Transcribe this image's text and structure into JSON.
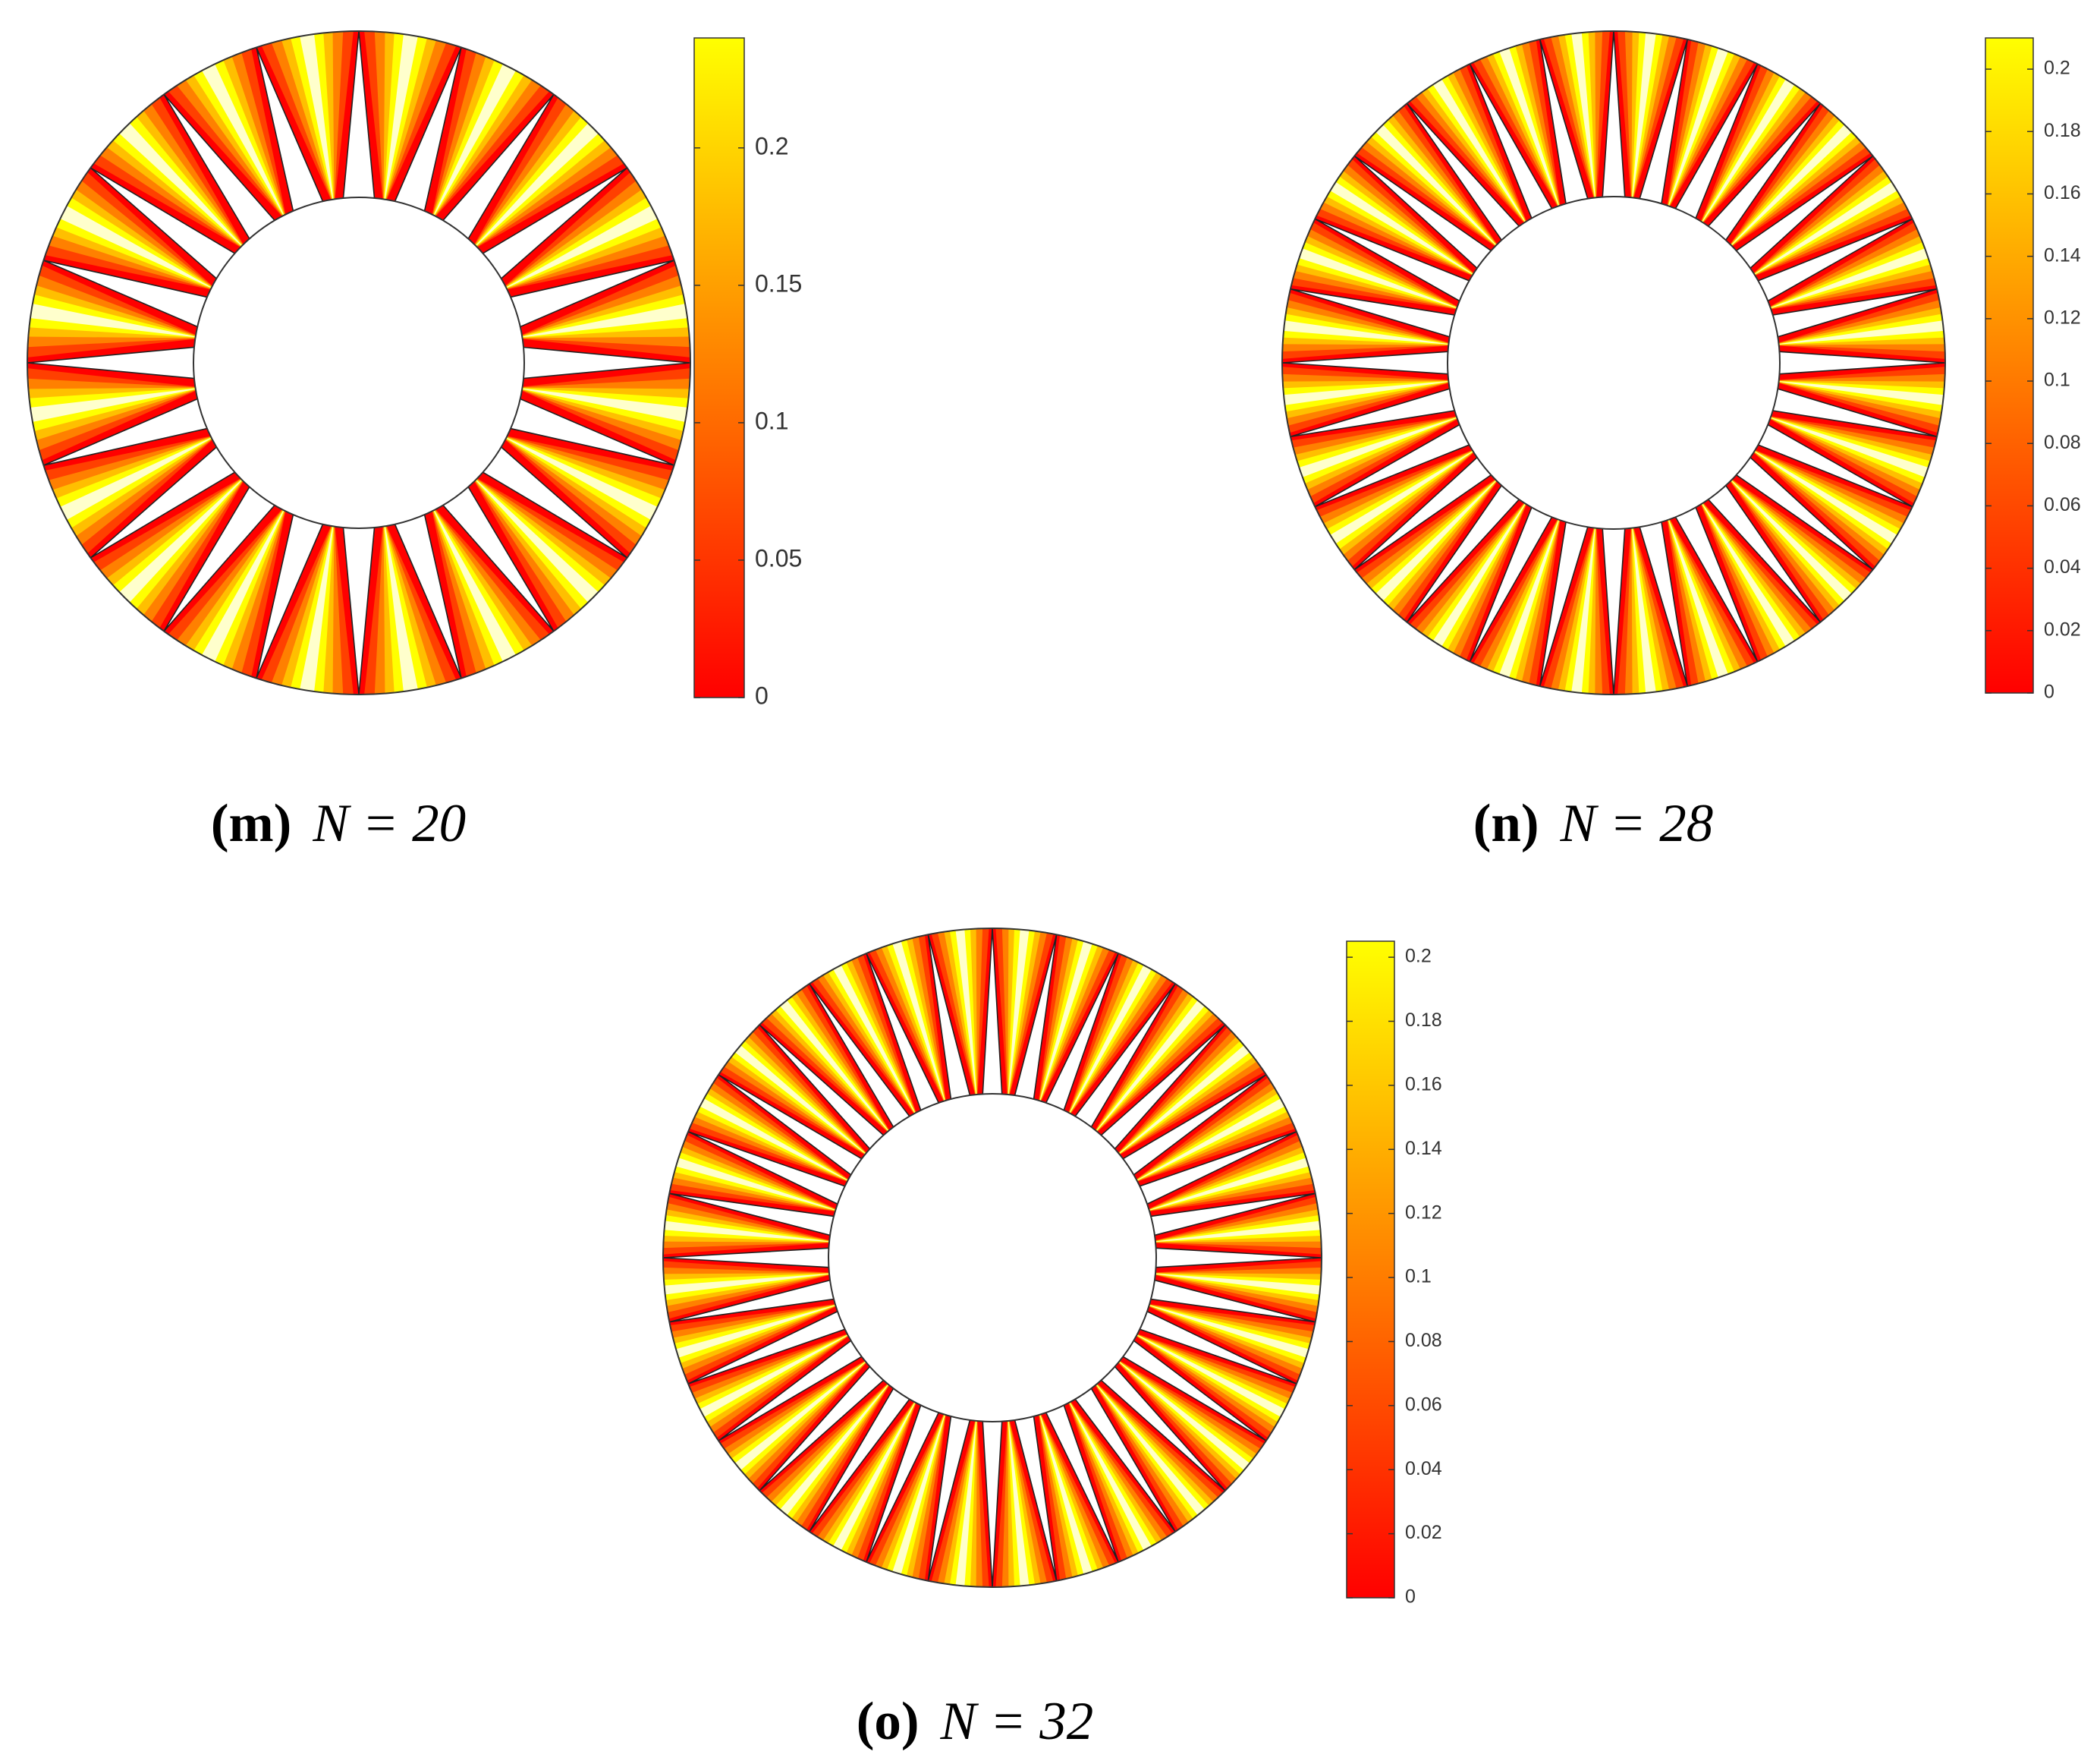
{
  "chart_data": [
    {
      "type": "annulus-contour",
      "panel_label": "(m)",
      "caption": "N = 20",
      "colormap": [
        "#ff0000",
        "#ffff00"
      ],
      "clim": [
        0,
        0.24
      ],
      "cticks": [
        0,
        0.05,
        0.1,
        0.15,
        0.2
      ]
    },
    {
      "type": "annulus-contour",
      "panel_label": "(n)",
      "caption": "N = 28",
      "colormap": [
        "#ff0000",
        "#ffff00"
      ],
      "clim": [
        0,
        0.21
      ],
      "cticks": [
        0,
        0.02,
        0.04,
        0.06,
        0.08,
        0.1,
        0.12,
        0.14,
        0.16,
        0.18,
        0.2
      ]
    },
    {
      "type": "annulus-contour",
      "panel_label": "(o)",
      "caption": "N = 32",
      "colormap": [
        "#ff0000",
        "#ffff00"
      ],
      "clim": [
        0,
        0.205
      ],
      "cticks": [
        0,
        0.02,
        0.04,
        0.06,
        0.08,
        0.1,
        0.12,
        0.14,
        0.16,
        0.18,
        0.2
      ]
    }
  ]
}
